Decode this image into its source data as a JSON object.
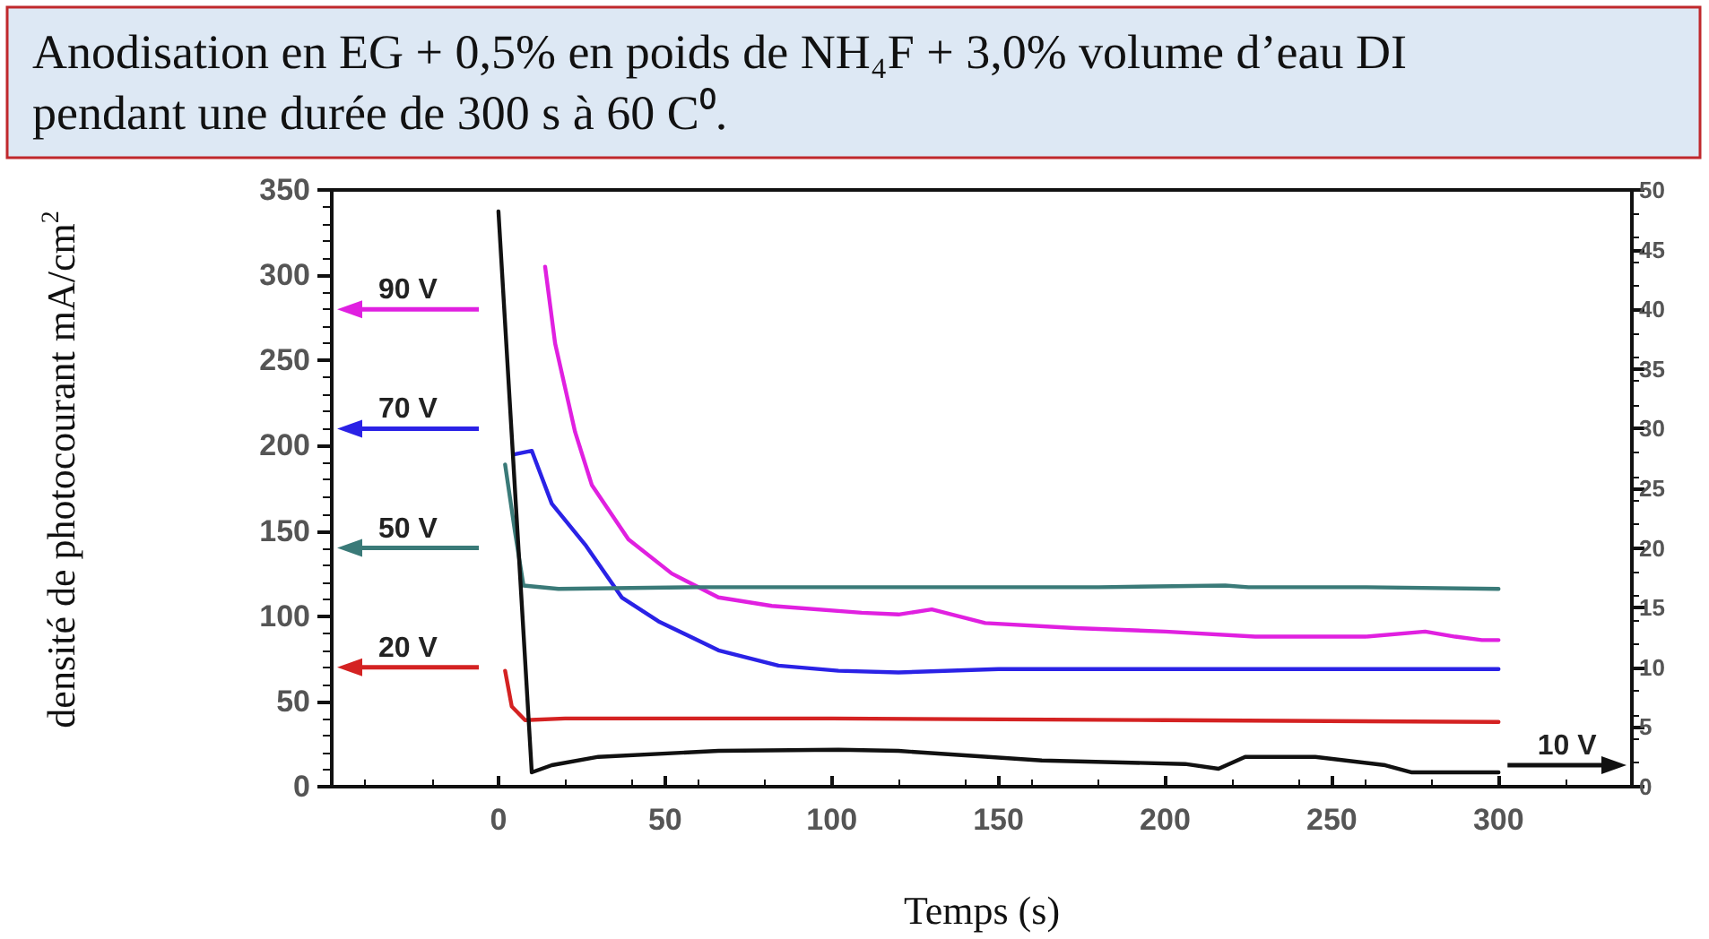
{
  "chart_data": {
    "type": "line",
    "title": "Anodisation en EG + 0,5% en poids de NH₄F + 3,0% volume d’eau DI pendant une durée de 300 s à 60 C⁰.",
    "xlabel": "Temps (s)",
    "ylabel": "densité de photocourant mA/cm$^{2}$",
    "xlim": [
      -50,
      340
    ],
    "xticks": [
      0,
      50,
      100,
      150,
      200,
      250,
      300
    ],
    "ylim": [
      0,
      350
    ],
    "yticks": [
      0,
      50,
      100,
      150,
      200,
      250,
      300,
      350
    ],
    "y2lim": [
      0,
      50
    ],
    "y2ticks": [
      0,
      5,
      10,
      15,
      20,
      25,
      30,
      35,
      40,
      45,
      50
    ],
    "grid": false,
    "legend": "left",
    "marker": "none",
    "line_style": "solid",
    "series": [
      {
        "name": "90 V",
        "color": "#e020e0",
        "x": [
          14,
          17,
          23,
          28,
          39,
          52,
          66,
          82,
          109,
          120,
          130,
          146,
          173,
          200,
          227,
          260,
          278,
          287,
          295,
          300
        ],
        "values": [
          305,
          260,
          208,
          177,
          145,
          125,
          111,
          106,
          102,
          101,
          104,
          96,
          93,
          91,
          88,
          88,
          91,
          88,
          86,
          86
        ]
      },
      {
        "name": "70 V",
        "color": "#2a22e6",
        "x": [
          5,
          10,
          16,
          26,
          37,
          48,
          66,
          84,
          102,
          120,
          150,
          200,
          250,
          300
        ],
        "values": [
          195,
          197,
          166,
          142,
          111,
          97,
          80,
          71,
          68,
          67,
          69,
          69,
          69,
          69
        ]
      },
      {
        "name": "50 V",
        "color": "#3a7a78",
        "x": [
          2,
          5,
          7.5,
          18,
          60,
          120,
          180,
          218,
          225,
          260,
          300
        ],
        "values": [
          189,
          149,
          118,
          116,
          117,
          117,
          117,
          118,
          117,
          117,
          116
        ]
      },
      {
        "name": "20 V",
        "color": "#d42222",
        "x": [
          2,
          4,
          8,
          20,
          100,
          200,
          300
        ],
        "values": [
          68,
          47,
          39,
          40,
          40,
          39,
          38
        ]
      },
      {
        "name": "10 V",
        "color": "#111111",
        "axis": "y2",
        "x": [
          0,
          10,
          16,
          30,
          66,
          102,
          120,
          163,
          206,
          216,
          224,
          245,
          266,
          274,
          293,
          300
        ],
        "values": [
          48.2,
          1.2,
          1.8,
          2.5,
          3.0,
          3.1,
          3.0,
          2.2,
          1.9,
          1.5,
          2.5,
          2.5,
          1.8,
          1.2,
          1.2,
          1.2
        ]
      }
    ]
  }
}
